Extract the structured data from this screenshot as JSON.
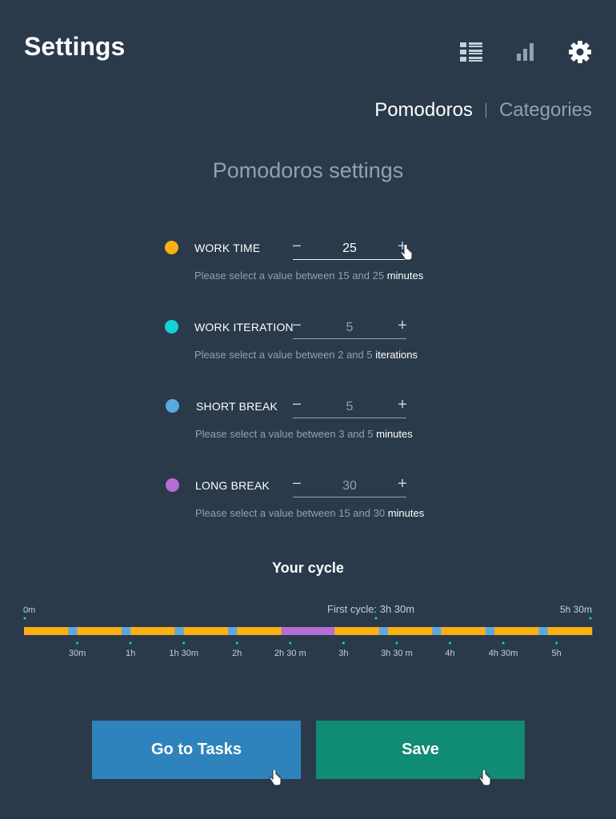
{
  "header": {
    "title": "Settings",
    "icons": [
      "list-icon",
      "chart-icon",
      "gear-icon"
    ]
  },
  "tabs": [
    {
      "label": "Pomodoros",
      "active": true
    },
    {
      "label": "Categories",
      "active": false
    }
  ],
  "section_title": "Pomodoros settings",
  "settings": [
    {
      "label": "WORK TIME",
      "value": "25",
      "hint": "Please select a value between 15 and 25",
      "unit": "minutes",
      "color": "#fbb014"
    },
    {
      "label": "WORK ITERATION",
      "value": "5",
      "hint": "Please select a value between 2 and 5",
      "unit": "iterations",
      "color": "#14d0d7"
    },
    {
      "label": "SHORT BREAK",
      "value": "5",
      "hint": "Please select a value between 3 and 5",
      "unit": "minutes",
      "color": "#5ba8e0"
    },
    {
      "label": "LONG BREAK",
      "value": "30",
      "hint": "Please select a value between 15 and 30",
      "unit": "minutes",
      "color": "#b36fd6"
    }
  ],
  "stepper_symbols": {
    "minus": "−",
    "plus": "+"
  },
  "cycle": {
    "title": "Your cycle",
    "start_label": "0m",
    "end_label": "5h 30m",
    "first_cycle_label": "First cycle:  3h 30m",
    "ticks": [
      "30m",
      "1h",
      "1h 30m",
      "2h",
      "2h 30 m",
      "3h",
      "3h 30 m",
      "4h",
      "4h 30m",
      "5h"
    ],
    "colors": {
      "work": "#fbb014",
      "short_break": "#5ba8e0",
      "long_break": "#b36fd6",
      "marker": "#14d0d7",
      "label": "#c4d0da"
    }
  },
  "buttons": {
    "go_to_tasks": "Go to Tasks",
    "save": "Save"
  }
}
